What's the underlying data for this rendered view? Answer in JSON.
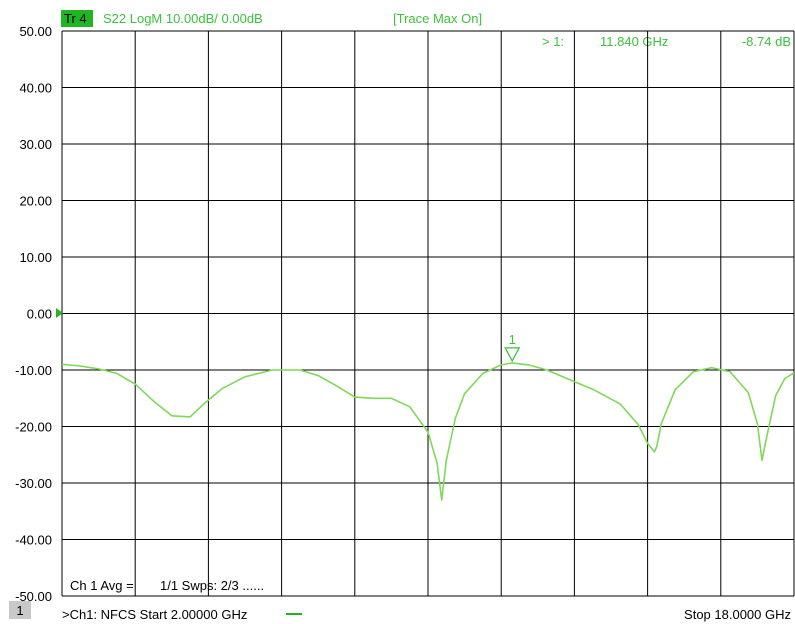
{
  "header": {
    "trace_badge": "Tr 4",
    "trace_info": "S22 LogM 10.00dB/  0.00dB",
    "trace_mode": "[Trace Max On]"
  },
  "marker_readout": {
    "label": "> 1:",
    "frequency": "11.840 GHz",
    "value": "-8.74 dB"
  },
  "status": {
    "avg": "Ch 1 Avg =",
    "sweeps": "1/1 Swps: 2/3 ......"
  },
  "footer": {
    "channel_badge": "1",
    "channel_info": ">Ch1: NFCS  Start  2.00000 GHz",
    "stop": "Stop  18.0000 GHz"
  },
  "colors": {
    "trace": "#7ed957",
    "badge": "#22b522",
    "text_green": "#3cc23c",
    "grid": "#000000"
  },
  "chart_data": {
    "type": "line",
    "title": "",
    "xlabel": "",
    "ylabel": "",
    "xlim": [
      2.0,
      18.0
    ],
    "ylim": [
      -50,
      50
    ],
    "y_tick_labels": [
      "50.00",
      "40.00",
      "30.00",
      "20.00",
      "10.00",
      "0.00",
      "-10.00",
      "-20.00",
      "-30.00",
      "-40.00",
      "-50.00"
    ],
    "x_divisions": 10,
    "grid": true,
    "reference_level": 0.0,
    "marker": {
      "label": "1",
      "x": 11.84,
      "y": -8.74
    },
    "series": [
      {
        "x": [
          2.0,
          2.4,
          2.8,
          3.2,
          3.6,
          4.0,
          4.4,
          4.8,
          5.1,
          5.5,
          6.0,
          6.6,
          7.2,
          7.6,
          8.0,
          8.4,
          8.8,
          9.2,
          9.6,
          10.0,
          10.2,
          10.3,
          10.4,
          10.6,
          10.8,
          11.2,
          11.6,
          11.84,
          12.2,
          12.6,
          13.0,
          13.6,
          14.2,
          14.6,
          14.8,
          14.95,
          15.0,
          15.1,
          15.4,
          15.8,
          16.2,
          16.6,
          17.0,
          17.2,
          17.3,
          17.4,
          17.6,
          17.8,
          18.0
        ],
        "y": [
          -9.0,
          -9.3,
          -9.8,
          -10.6,
          -12.5,
          -15.5,
          -18.1,
          -18.3,
          -16.0,
          -13.3,
          -11.2,
          -10.0,
          -10.0,
          -11.0,
          -12.8,
          -14.8,
          -15.0,
          -15.0,
          -16.5,
          -21.0,
          -26.5,
          -33.0,
          -26.0,
          -18.5,
          -14.2,
          -10.6,
          -9.1,
          -8.74,
          -9.1,
          -10.0,
          -11.4,
          -13.4,
          -16.0,
          -19.7,
          -23.0,
          -24.5,
          -23.5,
          -19.5,
          -13.5,
          -10.3,
          -9.6,
          -10.3,
          -14.0,
          -19.5,
          -26.0,
          -22.0,
          -14.5,
          -11.5,
          -10.5
        ]
      }
    ]
  }
}
